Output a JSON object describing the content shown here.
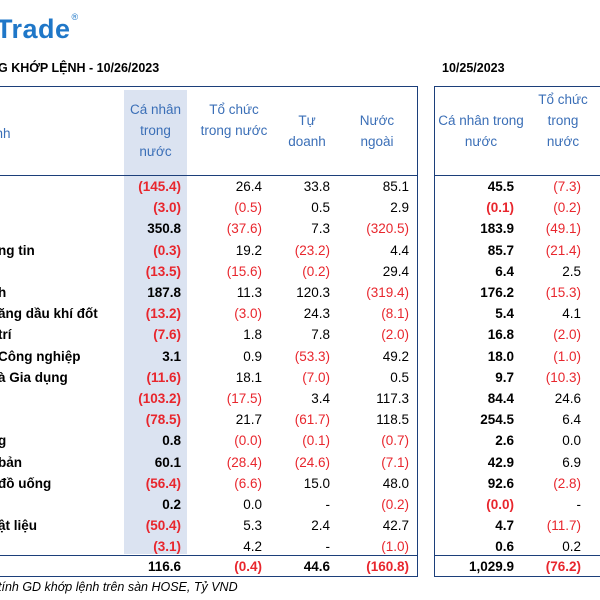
{
  "brand": {
    "logo_text": "Trade",
    "logo_mark": "®"
  },
  "titles": {
    "left": "G KHỚP LỆNH - 10/26/2023",
    "right": "10/25/2023"
  },
  "headers": {
    "label_col": "ành",
    "left": [
      "Cá nhân trong nước",
      "Tổ chức trong nước",
      "Tự doanh",
      "Nước ngoài"
    ],
    "right": [
      "Cá nhân trong nước",
      "Tổ chức trong nước"
    ]
  },
  "rows": [
    {
      "name": "",
      "v": [
        "(145.4)",
        "26.4",
        "33.8",
        "85.1"
      ],
      "r": [
        "45.5",
        "(7.3)"
      ]
    },
    {
      "name": "",
      "v": [
        "(3.0)",
        "(0.5)",
        "0.5",
        "2.9"
      ],
      "r": [
        "(0.1)",
        "(0.2)"
      ]
    },
    {
      "name": "",
      "v": [
        "350.8",
        "(37.6)",
        "7.3",
        "(320.5)"
      ],
      "r": [
        "183.9",
        "(49.1)"
      ]
    },
    {
      "name": "ng tin",
      "v": [
        "(0.3)",
        "19.2",
        "(23.2)",
        "4.4"
      ],
      "r": [
        "85.7",
        "(21.4)"
      ]
    },
    {
      "name": "",
      "v": [
        "(13.5)",
        "(15.6)",
        "(0.2)",
        "29.4"
      ],
      "r": [
        "6.4",
        "2.5"
      ]
    },
    {
      "name": "h",
      "v": [
        "187.8",
        "11.3",
        "120.3",
        "(319.4)"
      ],
      "r": [
        "176.2",
        "(15.3)"
      ]
    },
    {
      "name": "ăng dầu khí đốt",
      "v": [
        "(13.2)",
        "(3.0)",
        "24.3",
        "(8.1)"
      ],
      "r": [
        "5.4",
        "4.1"
      ]
    },
    {
      "name": "trí",
      "v": [
        "(7.6)",
        "1.8",
        "7.8",
        "(2.0)"
      ],
      "r": [
        "16.8",
        "(2.0)"
      ]
    },
    {
      "name": "Công nghiệp",
      "v": [
        "3.1",
        "0.9",
        "(53.3)",
        "49.2"
      ],
      "r": [
        "18.0",
        "(1.0)"
      ]
    },
    {
      "name": "à Gia dụng",
      "v": [
        "(11.6)",
        "18.1",
        "(7.0)",
        "0.5"
      ],
      "r": [
        "9.7",
        "(10.3)"
      ]
    },
    {
      "name": "",
      "v": [
        "(103.2)",
        "(17.5)",
        "3.4",
        "117.3"
      ],
      "r": [
        "84.4",
        "24.6"
      ]
    },
    {
      "name": "",
      "v": [
        "(78.5)",
        "21.7",
        "(61.7)",
        "118.5"
      ],
      "r": [
        "254.5",
        "6.4"
      ]
    },
    {
      "name": "g",
      "v": [
        "0.8",
        "(0.0)",
        "(0.1)",
        "(0.7)"
      ],
      "r": [
        "2.6",
        "0.0"
      ]
    },
    {
      "name": "bản",
      "v": [
        "60.1",
        "(28.4)",
        "(24.6)",
        "(7.1)"
      ],
      "r": [
        "42.9",
        "6.9"
      ]
    },
    {
      "name": "đồ uống",
      "v": [
        "(56.4)",
        "(6.6)",
        "15.0",
        "48.0"
      ],
      "r": [
        "92.6",
        "(2.8)"
      ]
    },
    {
      "name": "",
      "v": [
        "0.2",
        "0.0",
        "-",
        "(0.2)"
      ],
      "r": [
        "(0.0)",
        "-"
      ]
    },
    {
      "name": "ật liệu",
      "v": [
        "(50.4)",
        "5.3",
        "2.4",
        "42.7"
      ],
      "r": [
        "4.7",
        "(11.7)"
      ]
    },
    {
      "name": "",
      "v": [
        "(3.1)",
        "4.2",
        "-",
        "(1.0)"
      ],
      "r": [
        "0.6",
        "0.2"
      ]
    }
  ],
  "total": {
    "v": [
      "116.6",
      "(0.4)",
      "44.6",
      "(160.8)"
    ],
    "r": [
      "1,029.9",
      "(76.2)"
    ]
  },
  "footnote": "tính GD khớp lệnh trên sàn HOSE, Tỷ VND",
  "colors": {
    "brand": "#1f77c8",
    "header_text": "#3b6fb7",
    "negative": "#e8262d",
    "highlight": "#dbe3f1",
    "rule": "#1c3f7a"
  }
}
